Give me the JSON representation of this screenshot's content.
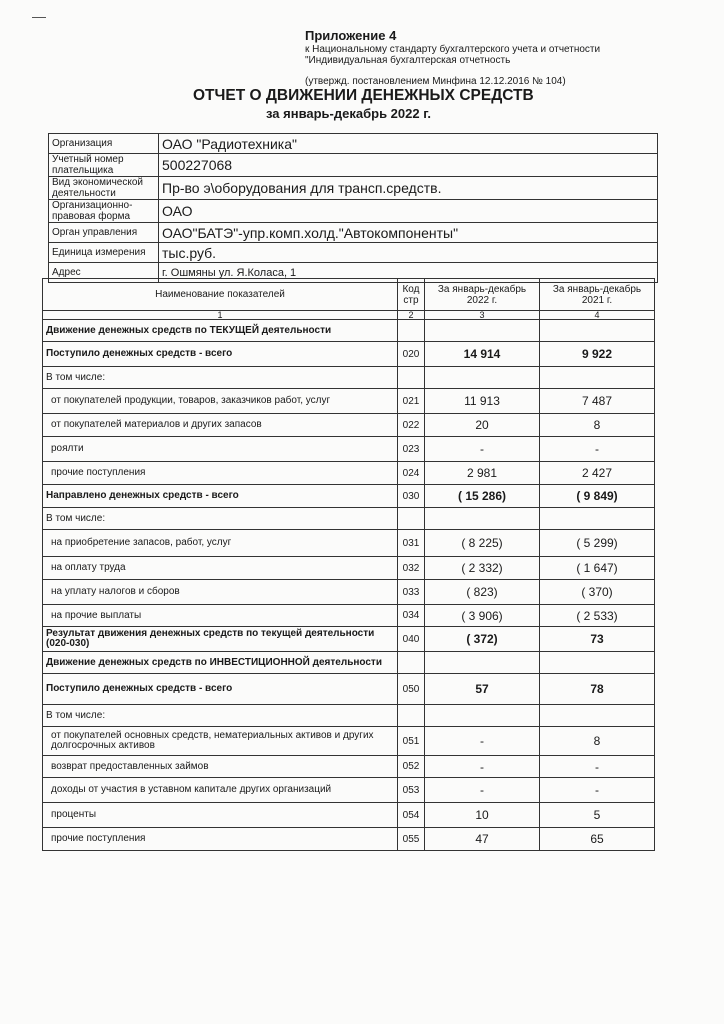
{
  "header": {
    "appendix": "Приложение 4",
    "line1": "к Национальному стандарту бухгалтерского учета и отчетности",
    "line2": "\"Индивидуальная бухгалтерская отчетность",
    "approval": "(утвержд. постановлением Минфина 12.12.2016 № 104)",
    "title": "ОТЧЕТ О ДВИЖЕНИИ ДЕНЕЖНЫХ СРЕДСТВ",
    "period": "за январь-декабрь  2022 г."
  },
  "info": [
    {
      "label": "Организация",
      "value": "ОАО \"Радиотехника\""
    },
    {
      "label": "Учетный номер плательщика",
      "value": "500227068"
    },
    {
      "label": "Вид экономической деятельности",
      "value": "Пр-во э\\оборудования для трансп.средств."
    },
    {
      "label": "Организационно-правовая форма",
      "value": "ОАО"
    },
    {
      "label": "Орган управления",
      "value": "ОАО\"БАТЭ\"-упр.комп.холд.\"Автокомпоненты\""
    },
    {
      "label": "Единица измерения",
      "value": "тыс.руб."
    },
    {
      "label": "Адрес",
      "value": "г. Ошмяны ул. Я.Коласа, 1"
    }
  ],
  "table": {
    "headers": [
      "Наименование показателей",
      "Код стр",
      "За январь-декабрь 2022 г.",
      "За январь-декабрь 2021 г."
    ],
    "col_numbers": [
      "1",
      "2",
      "3",
      "4"
    ],
    "rows": [
      {
        "name": "Движение денежных средств по ТЕКУЩЕЙ деятельности",
        "code": "",
        "v2022": "",
        "v2021": "",
        "bold": true
      },
      {
        "name": "Поступило денежных средств - всего",
        "code": "020",
        "v2022": "14 914",
        "v2021": "9 922",
        "bold": true
      },
      {
        "name": "В том числе:",
        "code": "",
        "v2022": "",
        "v2021": ""
      },
      {
        "name": "от покупателей продукции, товаров, заказчиков работ, услуг",
        "code": "021",
        "v2022": "11 913",
        "v2021": "7 487",
        "indent": true
      },
      {
        "name": "от покупателей материалов и других запасов",
        "code": "022",
        "v2022": "20",
        "v2021": "8",
        "indent": true
      },
      {
        "name": "роялти",
        "code": "023",
        "v2022": "-",
        "v2021": "-",
        "indent": true
      },
      {
        "name": "прочие поступления",
        "code": "024",
        "v2022": "2 981",
        "v2021": "2 427",
        "indent": true
      },
      {
        "name": "Направлено денежных средств - всего",
        "code": "030",
        "v2022": "( 15 286)",
        "v2021": "( 9 849)",
        "bold": true
      },
      {
        "name": "В том числе:",
        "code": "",
        "v2022": "",
        "v2021": ""
      },
      {
        "name": "на приобретение запасов,  работ, услуг",
        "code": "031",
        "v2022": "( 8 225)",
        "v2021": "( 5 299)",
        "indent": true
      },
      {
        "name": "на оплату труда",
        "code": "032",
        "v2022": "( 2 332)",
        "v2021": "( 1 647)",
        "indent": true
      },
      {
        "name": "на уплату налогов и сборов",
        "code": "033",
        "v2022": "( 823)",
        "v2021": "( 370)",
        "indent": true
      },
      {
        "name": "на прочие выплаты",
        "code": "034",
        "v2022": "( 3 906)",
        "v2021": "( 2 533)",
        "indent": true
      },
      {
        "name": "Результат движения денежных средств по текущей деятельности (020-030)",
        "code": "040",
        "v2022": "( 372)",
        "v2021": "73",
        "bold": true
      },
      {
        "name": "Движение денежных средств по ИНВЕСТИЦИОННОЙ деятельности",
        "code": "",
        "v2022": "",
        "v2021": "",
        "bold": true
      },
      {
        "name": "Поступило денежных средств - всего",
        "code": "050",
        "v2022": "57",
        "v2021": "78",
        "bold": true
      },
      {
        "name": "В том числе:",
        "code": "",
        "v2022": "",
        "v2021": ""
      },
      {
        "name": "от покупателей основных средств, нематериальных активов и других долгосрочных активов",
        "code": "051",
        "v2022": "-",
        "v2021": "8",
        "indent": true
      },
      {
        "name": "возврат предоставленных займов",
        "code": "052",
        "v2022": "-",
        "v2021": "-",
        "indent": true
      },
      {
        "name": "доходы от участия в уставном капитале других организаций",
        "code": "053",
        "v2022": "-",
        "v2021": "-",
        "indent": true
      },
      {
        "name": "проценты",
        "code": "054",
        "v2022": "10",
        "v2021": "5",
        "indent": true
      },
      {
        "name": "прочие поступления",
        "code": "055",
        "v2022": "47",
        "v2021": "65",
        "indent": true
      }
    ]
  }
}
